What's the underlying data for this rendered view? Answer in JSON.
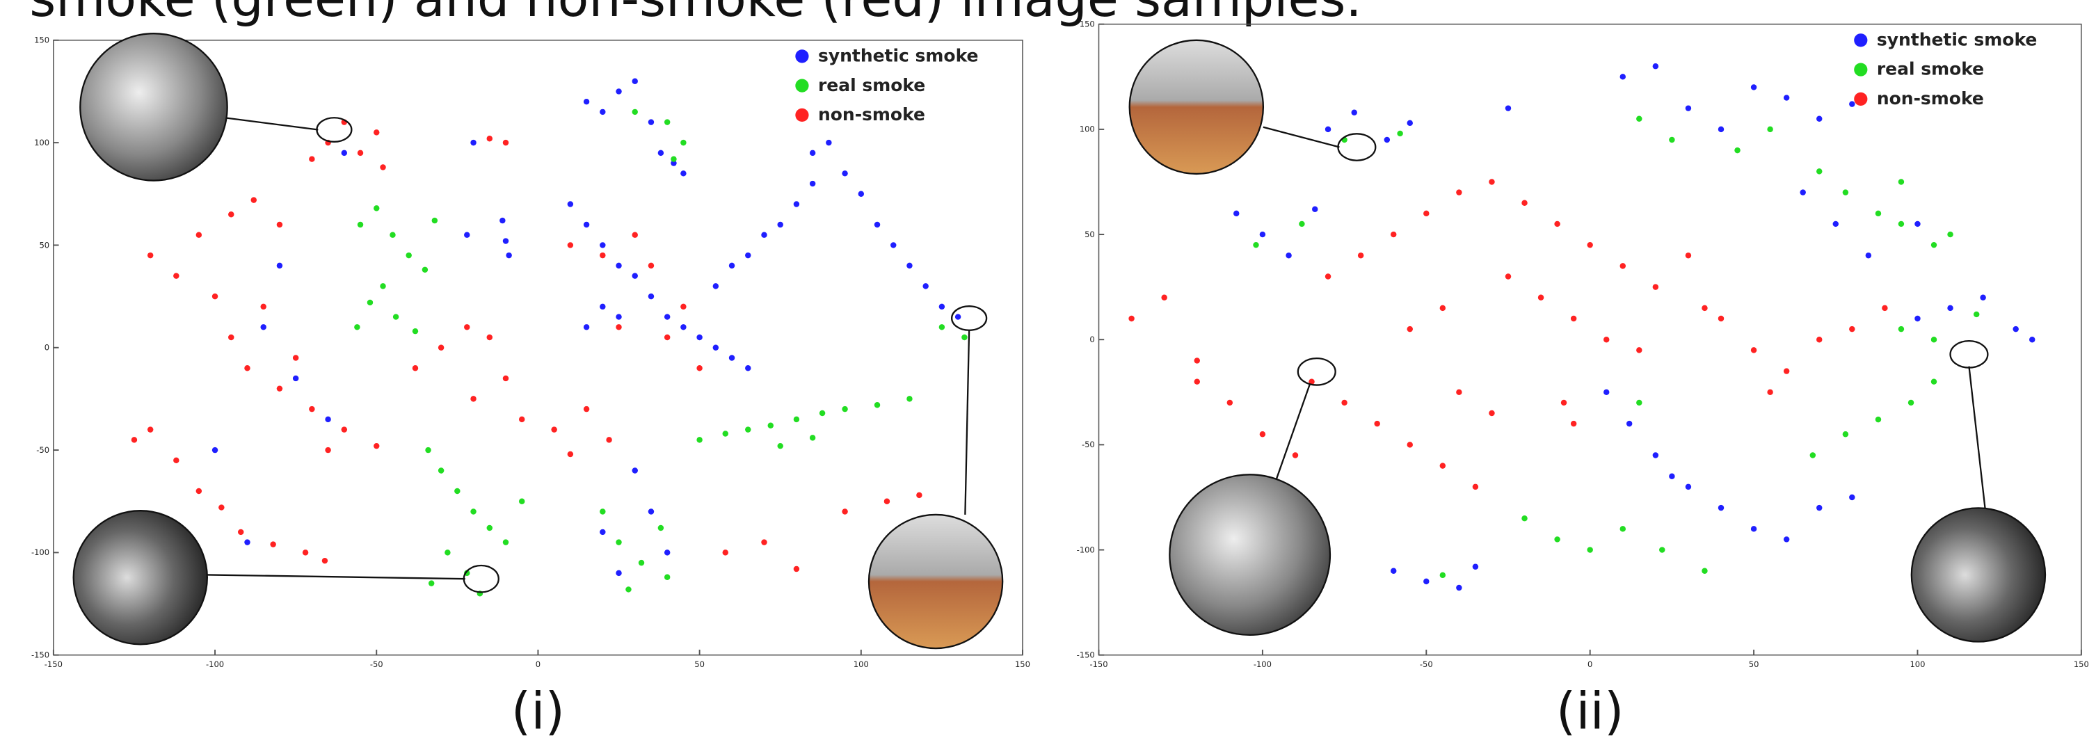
{
  "caption": "smoke (green) and non-smoke (red) image samples.",
  "chart_data": [
    {
      "type": "scatter",
      "label": "(i)",
      "xlim": [
        -150,
        150
      ],
      "ylim": [
        -150,
        150
      ],
      "xticks": [
        -150,
        -100,
        -50,
        0,
        50,
        100,
        150
      ],
      "yticks": [
        -150,
        -100,
        -50,
        0,
        50,
        100,
        150
      ],
      "legend": "upper right",
      "series": [
        {
          "name": "synthetic smoke",
          "color": "#1f1fff",
          "x": [
            15,
            20,
            25,
            30,
            35,
            38,
            42,
            45,
            -11,
            -10,
            -9,
            -22,
            10,
            15,
            20,
            25,
            30,
            35,
            40,
            45,
            50,
            55,
            60,
            65,
            15,
            20,
            25,
            55,
            60,
            65,
            70,
            75,
            80,
            85,
            85,
            90,
            95,
            100,
            105,
            110,
            115,
            120,
            125,
            130,
            -85,
            -75,
            -65,
            -80,
            -100,
            -90,
            -20,
            -60,
            30,
            35,
            20,
            25,
            40
          ],
          "values": [
            120,
            115,
            125,
            130,
            110,
            95,
            90,
            85,
            62,
            52,
            45,
            55,
            70,
            60,
            50,
            40,
            35,
            25,
            15,
            10,
            5,
            0,
            -5,
            -10,
            10,
            20,
            15,
            30,
            40,
            45,
            55,
            60,
            70,
            80,
            95,
            100,
            85,
            75,
            60,
            50,
            40,
            30,
            20,
            15,
            10,
            -15,
            -35,
            40,
            -50,
            -95,
            100,
            95,
            -60,
            -80,
            -90,
            -110,
            -100
          ]
        },
        {
          "name": "real smoke",
          "color": "#22dd22",
          "x": [
            -55,
            -50,
            -45,
            -40,
            -35,
            -48,
            -52,
            -44,
            -38,
            -56,
            -32,
            -34,
            -30,
            -25,
            -20,
            -15,
            -10,
            -28,
            -22,
            -18,
            -33,
            -5,
            50,
            58,
            65,
            72,
            80,
            88,
            95,
            105,
            115,
            75,
            85,
            20,
            25,
            32,
            40,
            28,
            38,
            40,
            45,
            42,
            30,
            125,
            132
          ],
          "values": [
            60,
            68,
            55,
            45,
            38,
            30,
            22,
            15,
            8,
            10,
            62,
            -50,
            -60,
            -70,
            -80,
            -88,
            -95,
            -100,
            -110,
            -120,
            -115,
            -75,
            -45,
            -42,
            -40,
            -38,
            -35,
            -32,
            -30,
            -28,
            -25,
            -48,
            -44,
            -80,
            -95,
            -105,
            -112,
            -118,
            -88,
            110,
            100,
            92,
            115,
            10,
            5
          ]
        },
        {
          "name": "non-smoke",
          "color": "#ff2222",
          "x": [
            -65,
            -60,
            -55,
            -50,
            -48,
            -70,
            -120,
            -112,
            -105,
            -95,
            -88,
            -80,
            -100,
            -85,
            -95,
            -90,
            -80,
            -70,
            -60,
            -50,
            -75,
            -65,
            -120,
            -112,
            -105,
            -98,
            -125,
            -92,
            -82,
            -72,
            -66,
            -38,
            -30,
            -22,
            -15,
            -10,
            -20,
            -5,
            5,
            15,
            22,
            10,
            -15,
            -10,
            58,
            70,
            80,
            95,
            108,
            118,
            10,
            20,
            30,
            35,
            25,
            40,
            50,
            45
          ],
          "values": [
            100,
            110,
            95,
            105,
            88,
            92,
            45,
            35,
            55,
            65,
            72,
            60,
            25,
            20,
            5,
            -10,
            -20,
            -30,
            -40,
            -48,
            -5,
            -50,
            -40,
            -55,
            -70,
            -78,
            -45,
            -90,
            -96,
            -100,
            -104,
            -10,
            0,
            10,
            5,
            -15,
            -25,
            -35,
            -40,
            -30,
            -45,
            -52,
            102,
            100,
            -100,
            -95,
            -108,
            -80,
            -75,
            -72,
            50,
            45,
            55,
            40,
            10,
            5,
            -10,
            20
          ]
        }
      ]
    },
    {
      "type": "scatter",
      "label": "(ii)",
      "xlim": [
        -150,
        150
      ],
      "ylim": [
        -150,
        150
      ],
      "xticks": [
        -150,
        -100,
        -50,
        0,
        50,
        100,
        150
      ],
      "yticks": [
        -150,
        -100,
        -50,
        0,
        50,
        100,
        150
      ],
      "legend": "upper right",
      "series": [
        {
          "name": "synthetic smoke",
          "color": "#1f1fff",
          "x": [
            10,
            20,
            30,
            40,
            50,
            60,
            70,
            80,
            -80,
            -72,
            -62,
            -55,
            -25,
            -108,
            -100,
            -92,
            -84,
            5,
            12,
            20,
            25,
            30,
            40,
            50,
            60,
            70,
            80,
            -60,
            -50,
            -40,
            -35,
            100,
            110,
            120,
            130,
            135,
            65,
            75,
            85,
            100
          ],
          "values": [
            125,
            130,
            110,
            100,
            120,
            115,
            105,
            112,
            100,
            108,
            95,
            103,
            110,
            60,
            50,
            40,
            62,
            -25,
            -40,
            -55,
            -65,
            -70,
            -80,
            -90,
            -95,
            -80,
            -75,
            -110,
            -115,
            -118,
            -108,
            10,
            15,
            20,
            5,
            0,
            70,
            55,
            40,
            55
          ]
        },
        {
          "name": "real smoke",
          "color": "#22dd22",
          "x": [
            15,
            25,
            45,
            55,
            70,
            78,
            88,
            95,
            -75,
            -58,
            -102,
            -88,
            -20,
            -10,
            0,
            10,
            22,
            35,
            68,
            78,
            88,
            98,
            105,
            95,
            105,
            110,
            95,
            105,
            118,
            -45,
            15
          ],
          "values": [
            105,
            95,
            90,
            100,
            80,
            70,
            60,
            75,
            95,
            98,
            45,
            55,
            -85,
            -95,
            -100,
            -90,
            -100,
            -110,
            -55,
            -45,
            -38,
            -30,
            -20,
            55,
            45,
            50,
            5,
            0,
            12,
            -112,
            -30
          ]
        },
        {
          "name": "non-smoke",
          "color": "#ff2222",
          "x": [
            -80,
            -70,
            -60,
            -50,
            -40,
            -30,
            -20,
            -10,
            0,
            10,
            20,
            30,
            35,
            -25,
            -15,
            -5,
            5,
            15,
            -45,
            -55,
            -140,
            -130,
            -120,
            -110,
            -100,
            -90,
            -85,
            -120,
            -75,
            -65,
            -55,
            -45,
            -35,
            -30,
            -40,
            40,
            50,
            60,
            70,
            80,
            90,
            55,
            -8,
            -5
          ],
          "values": [
            30,
            40,
            50,
            60,
            70,
            75,
            65,
            55,
            45,
            35,
            25,
            40,
            15,
            30,
            20,
            10,
            0,
            -5,
            15,
            5,
            10,
            20,
            -10,
            -30,
            -45,
            -55,
            -20,
            -20,
            -30,
            -40,
            -50,
            -60,
            -70,
            -35,
            -25,
            10,
            -5,
            -15,
            0,
            5,
            15,
            -25,
            -30,
            -40
          ]
        }
      ]
    }
  ]
}
